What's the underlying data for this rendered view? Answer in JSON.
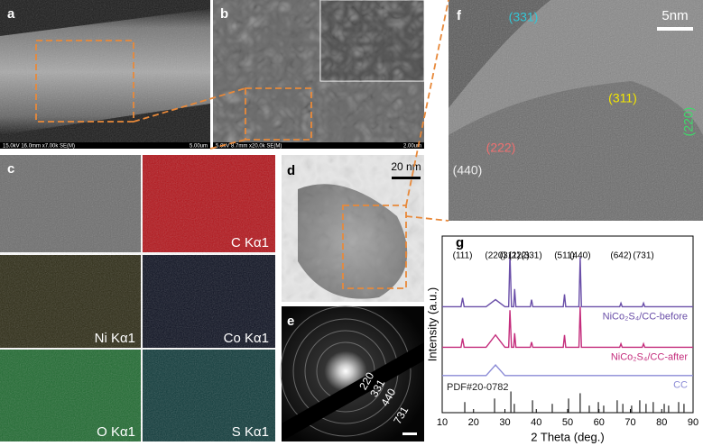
{
  "panels": {
    "a": {
      "label": "a",
      "info": "15.0kV 16.0mm x7.00k SE(M)",
      "scale": "5.00um"
    },
    "b": {
      "label": "b",
      "info": "5.0kV 8.7mm x20.0k SE(M)",
      "scale": "2.00um"
    },
    "c": {
      "label": "c",
      "maps": [
        "C Kα1",
        "Ni Kα1",
        "Co Kα1",
        "O Kα1",
        "S Kα1"
      ]
    },
    "d": {
      "label": "d",
      "scale": "20 nm"
    },
    "e": {
      "label": "e",
      "rings": [
        "220",
        "331",
        "440",
        "731"
      ]
    },
    "f": {
      "label": "f",
      "scale": "5nm",
      "planes": [
        "(331)",
        "(311)",
        "(222)",
        "(440)",
        "(220)"
      ]
    }
  },
  "chart_data": {
    "type": "line",
    "label": "g",
    "xlabel": "2 Theta (deg.)",
    "ylabel": "Intensity (a.u.)",
    "xlim": [
      10,
      90
    ],
    "xticks": [
      10,
      20,
      30,
      40,
      50,
      60,
      70,
      80,
      90
    ],
    "ylim": [
      0,
      100
    ],
    "x": [
      10,
      16,
      16.5,
      17,
      24,
      27,
      30,
      31.2,
      31.6,
      32.1,
      32.8,
      33.1,
      33.5,
      38.1,
      38.5,
      38.9,
      48.6,
      49,
      49.4,
      53.6,
      54,
      54.4,
      66.6,
      67,
      67.4,
      73.8,
      74.2,
      74.6,
      90
    ],
    "series": [
      {
        "name": "NiCo₂S₄/CC-before",
        "color": "#6a4fa8",
        "values": [
          60,
          60,
          65,
          60,
          60,
          64,
          60,
          60,
          90,
          60,
          60,
          70,
          60,
          60,
          64,
          60,
          60,
          67,
          60,
          60,
          88,
          60,
          60,
          62,
          60,
          60,
          62,
          60,
          60
        ]
      },
      {
        "name": "NiCo₂S₄/CC-after",
        "color": "#c42d7c",
        "values": [
          37,
          37,
          42,
          37,
          37,
          44,
          37,
          37,
          58,
          37,
          37,
          45,
          37,
          37,
          40,
          37,
          37,
          44,
          37,
          37,
          60,
          37,
          37,
          39,
          37,
          37,
          39,
          37,
          37
        ]
      },
      {
        "name": "CC",
        "color": "#8b8bd6",
        "values": [
          21,
          21,
          21,
          21,
          21,
          27,
          21,
          21,
          21,
          21,
          21,
          21,
          21,
          21,
          21,
          21,
          21,
          21,
          21,
          21,
          21,
          21,
          21,
          21,
          21,
          21,
          21,
          21,
          21
        ]
      }
    ],
    "reference": {
      "name": "PDF#20-0782",
      "color": "#222222",
      "x": [
        17.2,
        26.7,
        31.9,
        33.0,
        38.8,
        45.1,
        50.3,
        54.0,
        56.9,
        59.8,
        61.5,
        65.8,
        67.6,
        70.4,
        73.0,
        75.0,
        77.3,
        80.8,
        82.2,
        85.4,
        87.1
      ],
      "values": [
        6,
        8,
        12,
        5,
        7,
        5,
        8,
        11,
        4,
        6,
        4,
        7,
        5,
        4,
        7,
        5,
        6,
        5,
        4,
        6,
        5
      ]
    },
    "annotations": [
      {
        "text": "(111)",
        "x": 16.5
      },
      {
        "text": "(220)",
        "x": 27
      },
      {
        "text": "(311)",
        "x": 31.6
      },
      {
        "text": "(222)",
        "x": 34.5
      },
      {
        "text": "(331)",
        "x": 38.5
      },
      {
        "text": "(511)",
        "x": 49
      },
      {
        "text": "(440)",
        "x": 54
      },
      {
        "text": "(642)",
        "x": 67
      },
      {
        "text": "(731)",
        "x": 74.2
      }
    ]
  }
}
